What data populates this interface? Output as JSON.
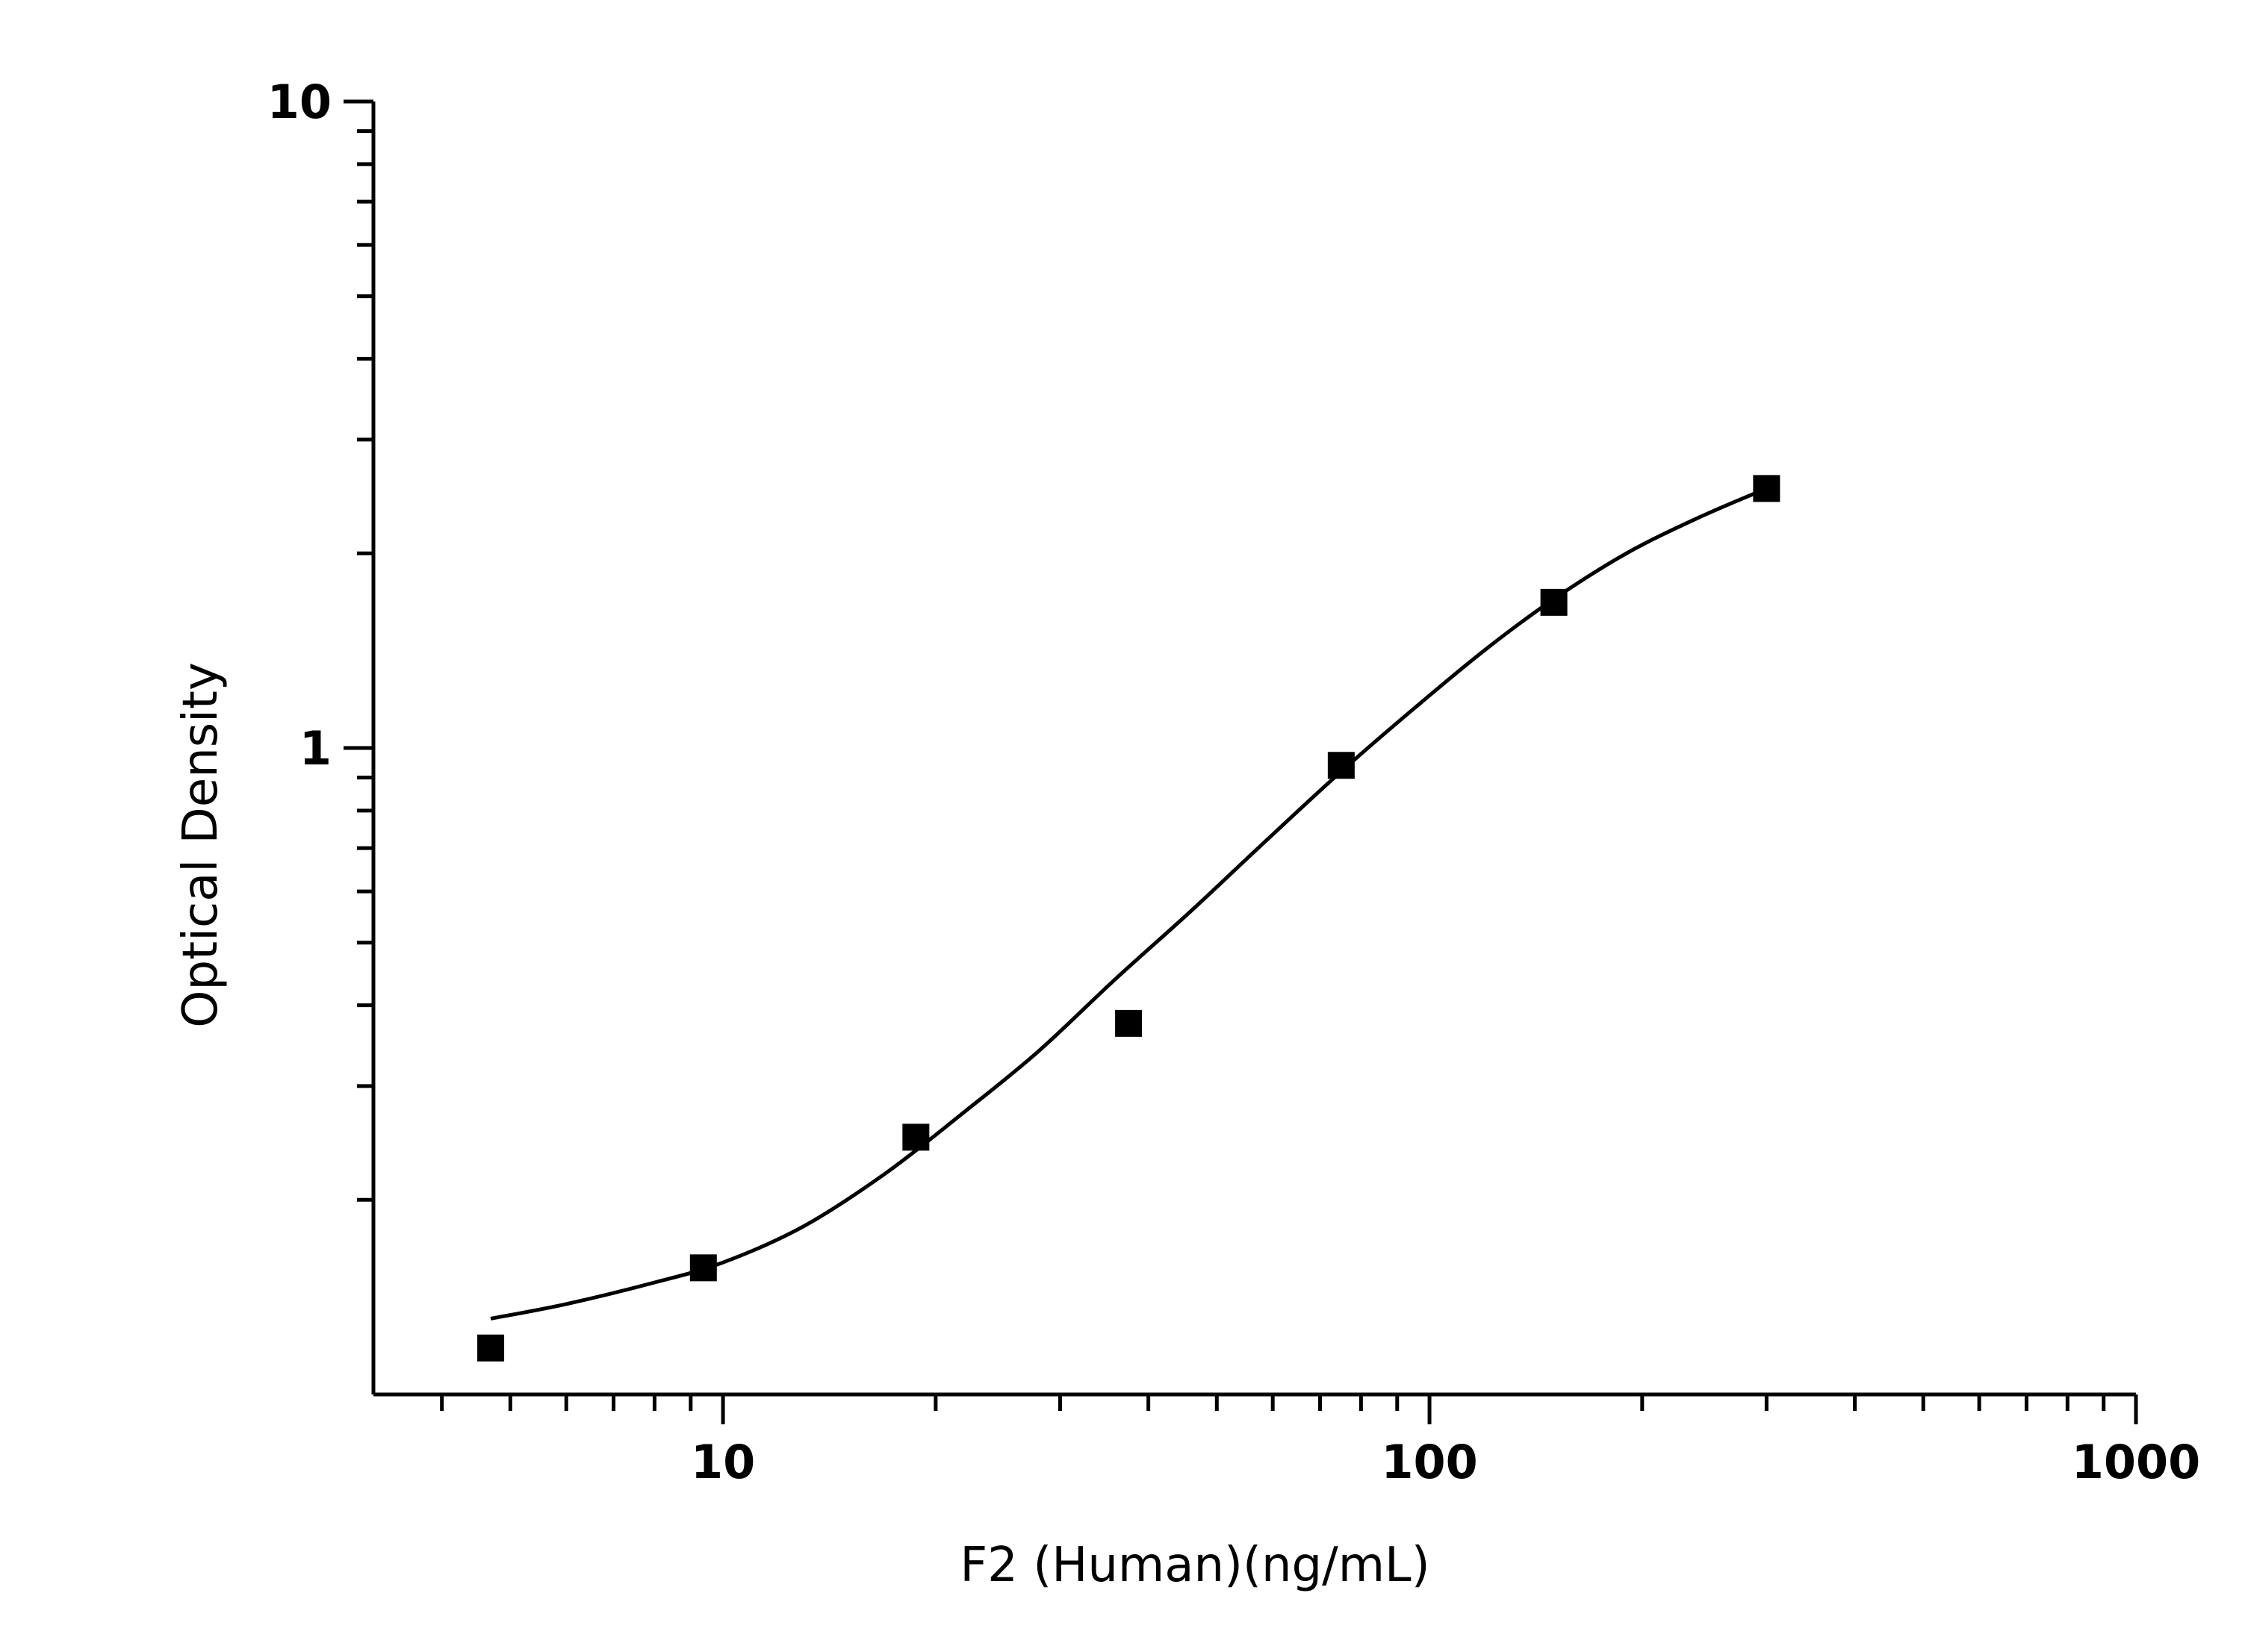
{
  "chart_data": {
    "type": "scatter",
    "xlabel": "F2 (Human)(ng/mL)",
    "ylabel": "Optical Density",
    "xscale": "log",
    "yscale": "log",
    "xlim": [
      3.2,
      1000
    ],
    "ylim": [
      0.1,
      10
    ],
    "x_ticks": [
      {
        "value": 10,
        "label": "10"
      },
      {
        "value": 100,
        "label": "100"
      },
      {
        "value": 1000,
        "label": "1000"
      }
    ],
    "y_ticks": [
      {
        "value": 1,
        "label": "1"
      },
      {
        "value": 10,
        "label": "10"
      }
    ],
    "grid": false,
    "marker": "square",
    "points": [
      {
        "x": 4.69,
        "y": 0.118
      },
      {
        "x": 9.38,
        "y": 0.157
      },
      {
        "x": 18.75,
        "y": 0.25
      },
      {
        "x": 37.5,
        "y": 0.375
      },
      {
        "x": 75,
        "y": 0.94
      },
      {
        "x": 150,
        "y": 1.68
      },
      {
        "x": 300,
        "y": 2.52
      }
    ],
    "fit_curve": [
      {
        "x": 4.69,
        "y": 0.131
      },
      {
        "x": 6,
        "y": 0.138
      },
      {
        "x": 8,
        "y": 0.149
      },
      {
        "x": 10,
        "y": 0.16
      },
      {
        "x": 13,
        "y": 0.182
      },
      {
        "x": 17,
        "y": 0.22
      },
      {
        "x": 22,
        "y": 0.274
      },
      {
        "x": 28,
        "y": 0.34
      },
      {
        "x": 36,
        "y": 0.44
      },
      {
        "x": 46,
        "y": 0.56
      },
      {
        "x": 58,
        "y": 0.71
      },
      {
        "x": 75,
        "y": 0.92
      },
      {
        "x": 95,
        "y": 1.15
      },
      {
        "x": 120,
        "y": 1.42
      },
      {
        "x": 150,
        "y": 1.7
      },
      {
        "x": 190,
        "y": 2.0
      },
      {
        "x": 240,
        "y": 2.27
      },
      {
        "x": 300,
        "y": 2.52
      }
    ]
  }
}
